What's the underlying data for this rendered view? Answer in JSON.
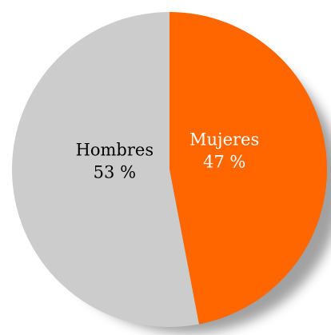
{
  "chart_data": {
    "type": "pie",
    "title": "",
    "start_angle_deg": 0,
    "direction": "clockwise",
    "slices": [
      {
        "name": "Mujeres",
        "value": 47,
        "display": "47 %",
        "color": "#ff6600",
        "label_color": "#ffffff"
      },
      {
        "name": "Hombres",
        "value": 53,
        "display": "53 %",
        "color": "#cccccc",
        "label_color": "#000000"
      }
    ],
    "shadow": true,
    "legend": "none"
  }
}
